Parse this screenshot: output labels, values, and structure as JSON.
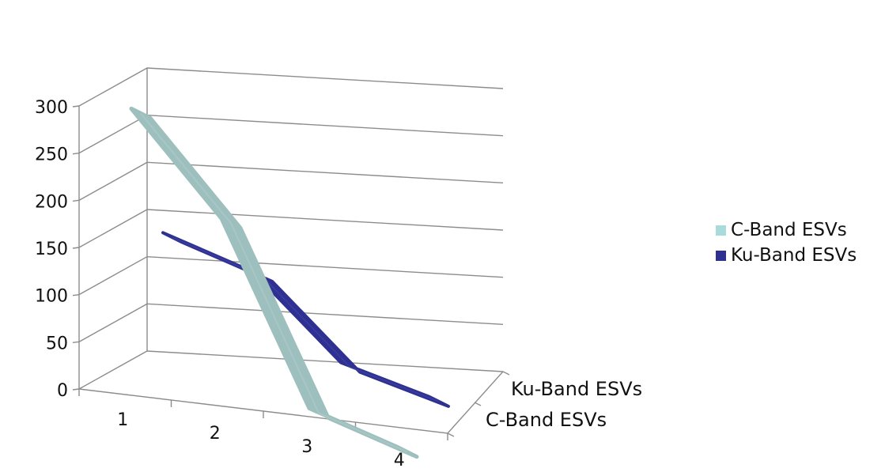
{
  "chart_data": {
    "type": "line",
    "chart_subtype": "3d-line",
    "categories": [
      "1",
      "2",
      "3",
      "4"
    ],
    "series": [
      {
        "name": "C-Band ESVs",
        "values": [
          300,
          195,
          5,
          -25
        ],
        "color": "#9dbfbd",
        "legend_color": "#a9dbdb"
      },
      {
        "name": "Ku-Band ESVs",
        "values": [
          140,
          110,
          25,
          0
        ],
        "color": "#2e3192",
        "legend_color": "#2e3192"
      }
    ],
    "y_ticks": [
      "0",
      "50",
      "100",
      "150",
      "200",
      "250",
      "300"
    ],
    "ylim": [
      0,
      300
    ],
    "grid": true,
    "legend_position": "right"
  }
}
